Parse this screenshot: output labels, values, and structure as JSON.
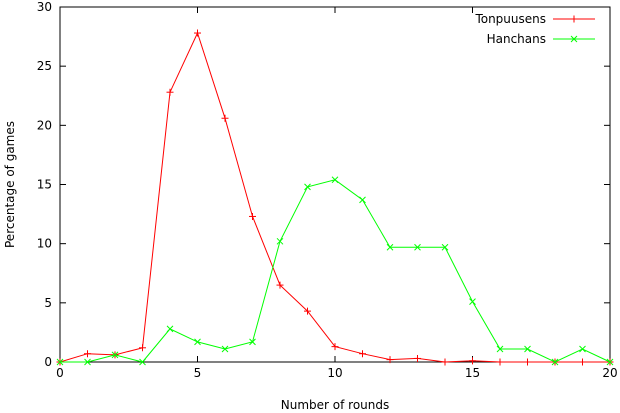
{
  "chart_data": {
    "type": "line",
    "xlabel": "Number of rounds",
    "ylabel": "Percentage of games",
    "xlim": [
      0,
      20
    ],
    "ylim": [
      0,
      30
    ],
    "xticks": [
      0,
      5,
      10,
      15,
      20
    ],
    "yticks": [
      0,
      5,
      10,
      15,
      20,
      25,
      30
    ],
    "grid": false,
    "legend_position": "top-right",
    "series": [
      {
        "name": "Tonpuusens",
        "color": "#ff0000",
        "marker": "plus",
        "x": [
          0,
          1,
          2,
          3,
          4,
          5,
          6,
          7,
          8,
          9,
          10,
          11,
          12,
          13,
          14,
          15,
          16,
          17,
          18,
          19,
          20
        ],
        "y": [
          0,
          0.7,
          0.6,
          1.2,
          22.8,
          27.8,
          20.6,
          12.3,
          6.5,
          4.3,
          1.3,
          0.7,
          0.2,
          0.3,
          0,
          0.1,
          0,
          0,
          0,
          0,
          0
        ]
      },
      {
        "name": "Hanchans",
        "color": "#00ff00",
        "marker": "cross",
        "x": [
          0,
          1,
          2,
          3,
          4,
          5,
          6,
          7,
          8,
          9,
          10,
          11,
          12,
          13,
          14,
          15,
          16,
          17,
          18,
          19,
          20
        ],
        "y": [
          0,
          0,
          0.6,
          0,
          2.8,
          1.7,
          1.1,
          1.7,
          10.2,
          14.8,
          15.4,
          13.7,
          9.7,
          9.7,
          9.7,
          5.1,
          1.1,
          1.1,
          0,
          1.1,
          0
        ]
      }
    ]
  }
}
